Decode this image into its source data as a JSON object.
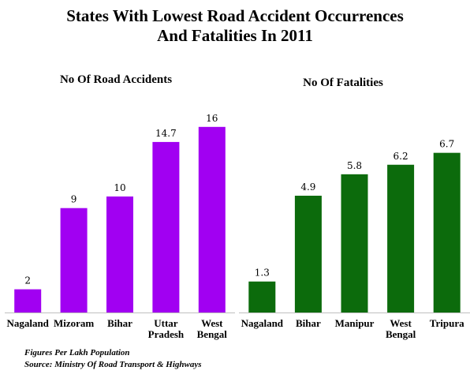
{
  "title": {
    "line1": "States With Lowest Road Accident Occurrences",
    "line2": "And Fatalities In 2011"
  },
  "chart_data": [
    {
      "type": "bar",
      "title": "No Of Road Accidents",
      "categories": [
        [
          "Nagaland"
        ],
        [
          "Mizoram"
        ],
        [
          "Bihar"
        ],
        [
          "Uttar",
          "Pradesh"
        ],
        [
          "West",
          "Bengal"
        ]
      ],
      "values": [
        2,
        9,
        10,
        14.7,
        16
      ],
      "value_labels": [
        "2",
        "9",
        "10",
        "14.7",
        "16"
      ],
      "color": "#a100f2",
      "grid": false
    },
    {
      "type": "bar",
      "title": "No Of Fatalities",
      "categories": [
        [
          "Nagaland"
        ],
        [
          "Bihar"
        ],
        [
          "Manipur"
        ],
        [
          "West",
          "Bengal"
        ],
        [
          "Tripura"
        ]
      ],
      "values": [
        1.3,
        4.9,
        5.8,
        6.2,
        6.7
      ],
      "value_labels": [
        "1.3",
        "4.9",
        "5.8",
        "6.2",
        "6.7"
      ],
      "color": "#0c6b0c",
      "grid": false
    }
  ],
  "notes": {
    "line1": "Figures Per Lakh Population",
    "line2": "Source:  Ministry Of Road Transport  & Highways"
  }
}
